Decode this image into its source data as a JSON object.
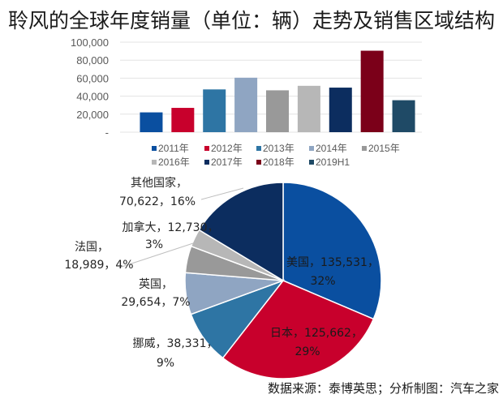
{
  "title": "聆风的全球年度销量（单位：辆）走势及销售区域结构",
  "source": "数据来源：泰博英思；分析制图：汽车之家",
  "chart_data": [
    {
      "type": "bar",
      "title": "聆风的全球年度销量（单位：辆）",
      "categories": [
        "2011年",
        "2012年",
        "2013年",
        "2014年",
        "2015年",
        "2016年",
        "2017年",
        "2018年",
        "2019H1"
      ],
      "values": [
        22000,
        27000,
        47500,
        60500,
        46500,
        51500,
        49500,
        90500,
        35500
      ],
      "colors": [
        "#0a4fa0",
        "#c8002c",
        "#2e75a4",
        "#8fa5c2",
        "#999999",
        "#b7b7b7",
        "#0c2d5f",
        "#7b0019",
        "#1f4a66"
      ],
      "ylim": [
        0,
        100000
      ],
      "yticks": [
        "-",
        "20,000",
        "40,000",
        "60,000",
        "80,000",
        "100,000"
      ],
      "grid": true,
      "legend_position": "bottom",
      "xlabel": "",
      "ylabel": ""
    },
    {
      "type": "pie",
      "title": "销售区域结构",
      "categories": [
        "美国",
        "日本",
        "挪威",
        "英国",
        "法国",
        "加拿大",
        "其他国家"
      ],
      "values": [
        135531,
        125662,
        38331,
        29654,
        18989,
        12730,
        70622
      ],
      "percents": [
        32,
        29,
        9,
        7,
        4,
        3,
        16
      ],
      "labels": [
        [
          "美国，135,531，",
          "32%"
        ],
        [
          "日本，125,662，",
          "29%"
        ],
        [
          "挪威，38,331，",
          "9%"
        ],
        [
          "英国，",
          "29,654，7%"
        ],
        [
          "法国，",
          "18,989，4%"
        ],
        [
          "加拿大，12,730，",
          "3%"
        ],
        [
          "其他国家，",
          "70,622，16%"
        ]
      ],
      "colors": [
        "#0a4fa0",
        "#c8002c",
        "#2e75a4",
        "#8fa5c2",
        "#999999",
        "#b7b7b7",
        "#0c2d5f"
      ]
    }
  ]
}
